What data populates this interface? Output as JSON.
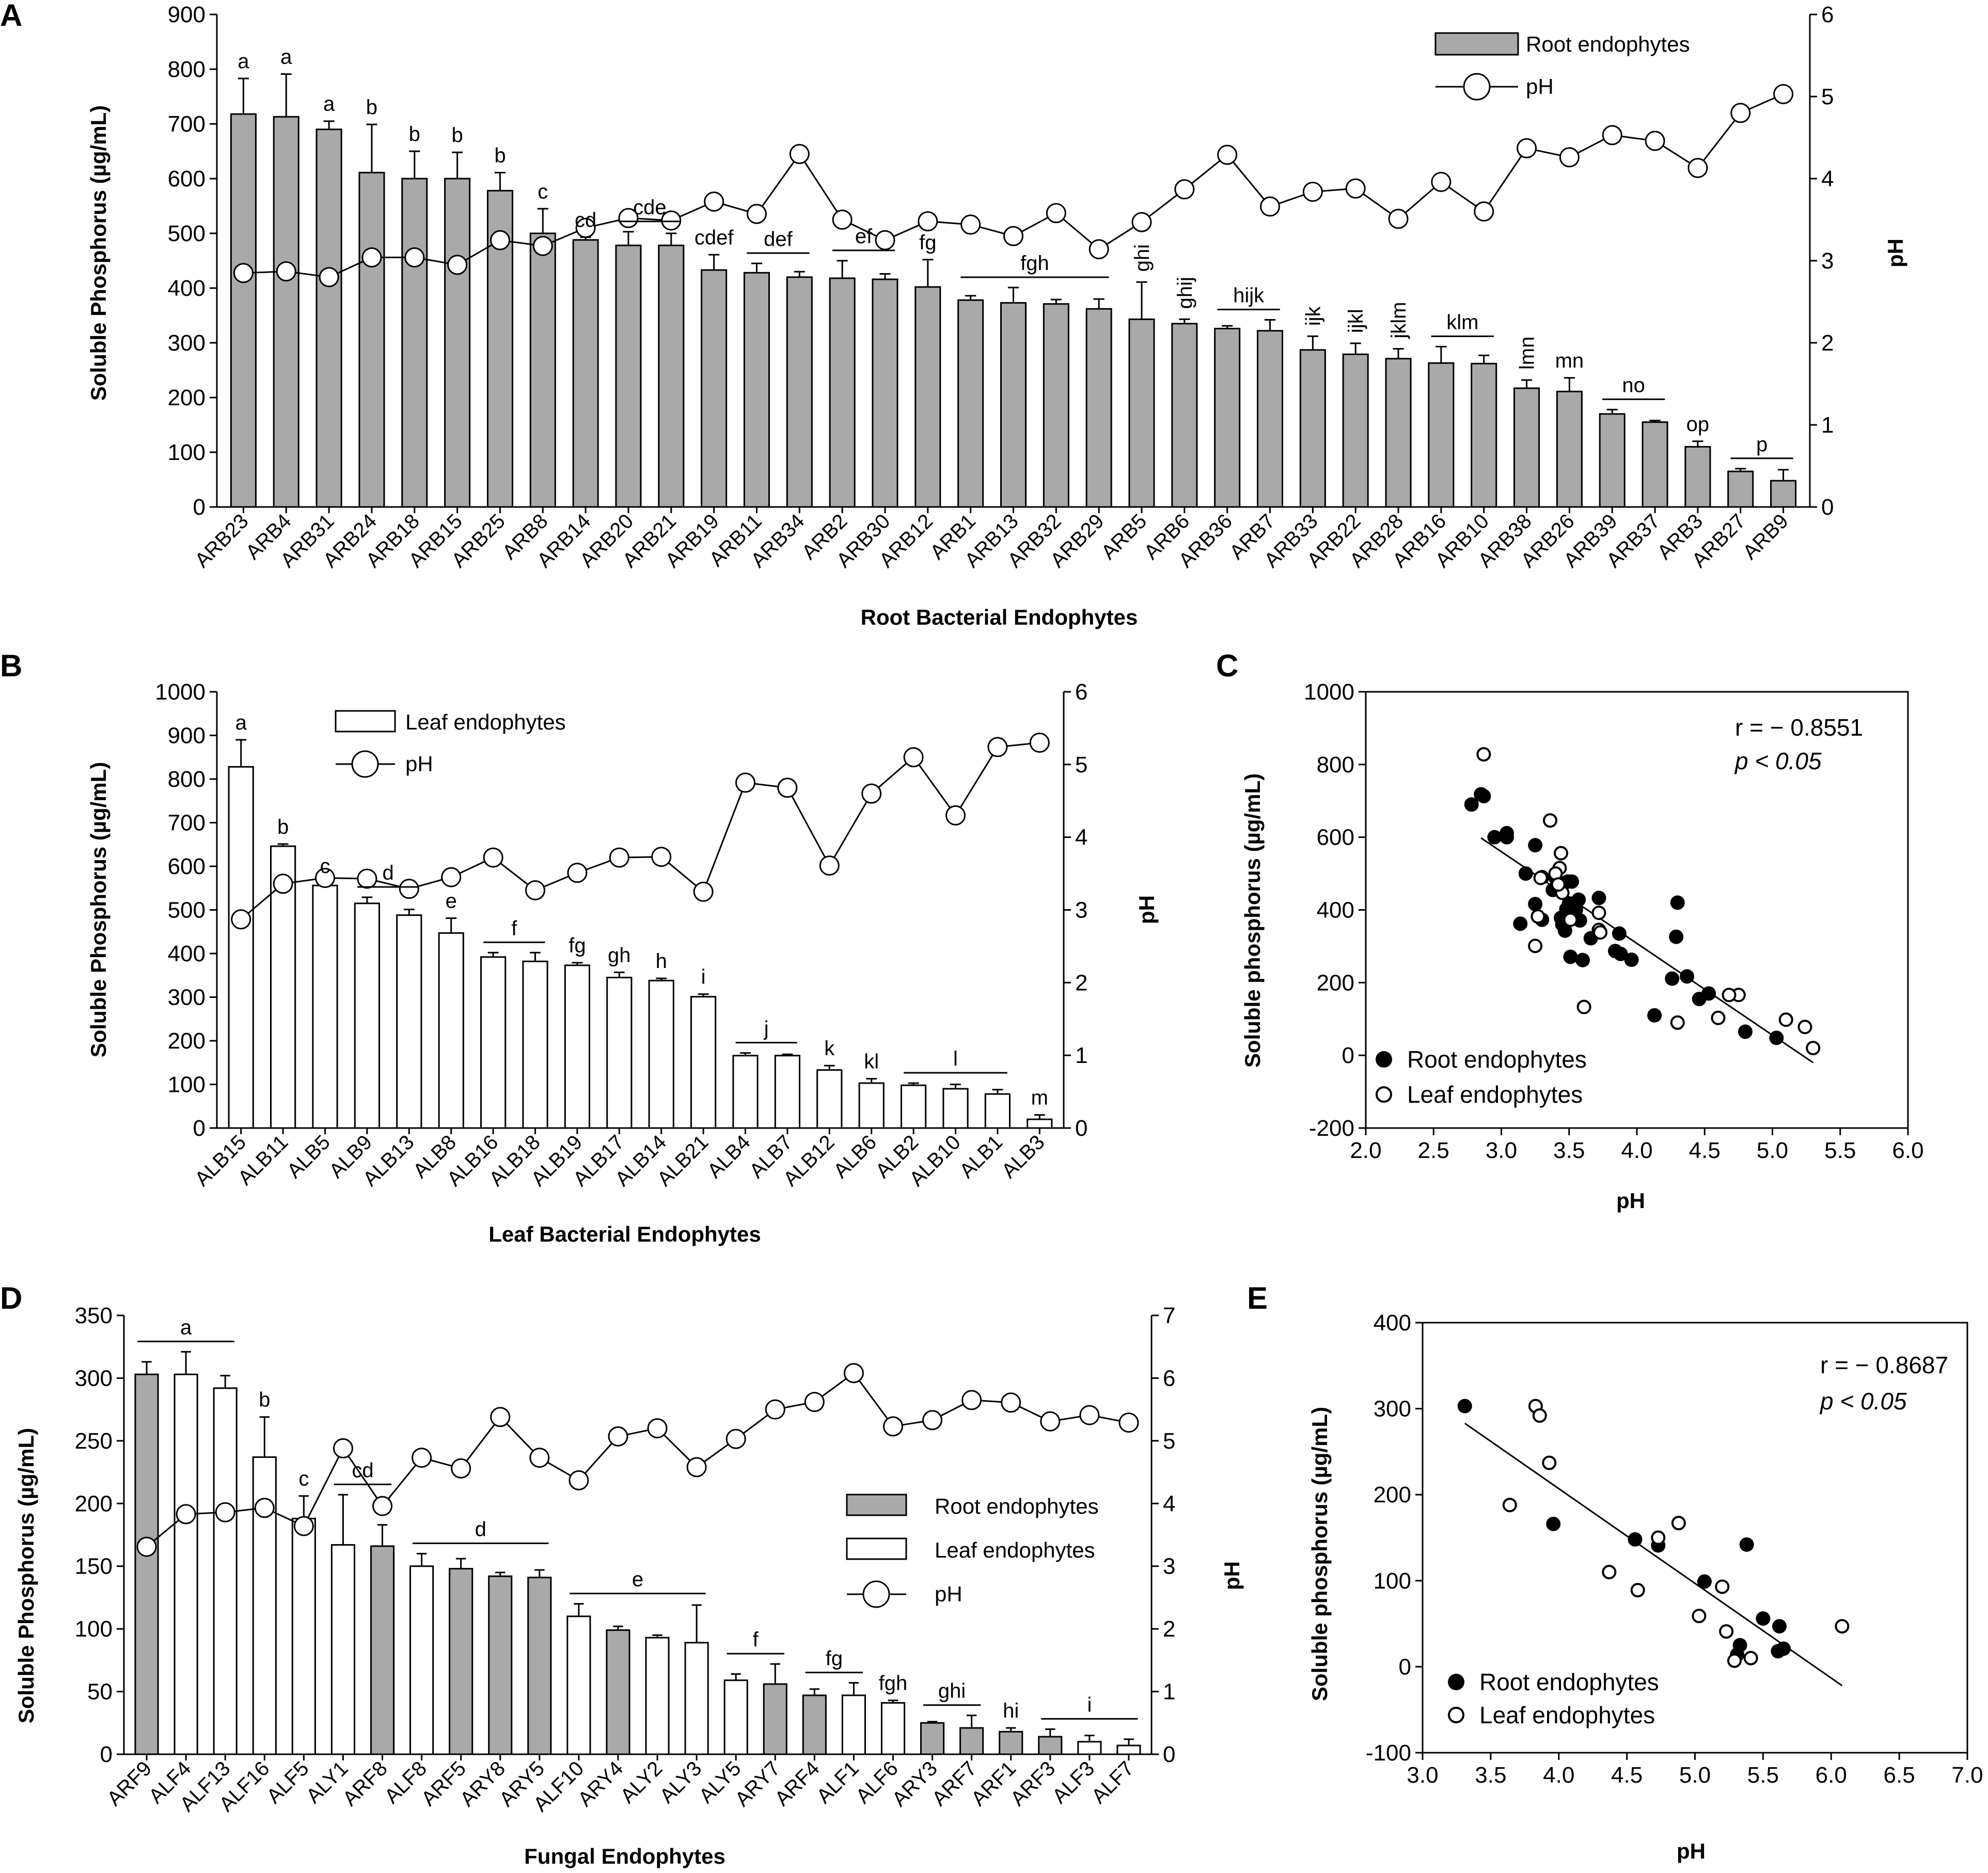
{
  "chart_data": [
    {
      "id": "A",
      "type": "bar",
      "panel_label": "A",
      "xlabel": "Root Bacterial Endophytes",
      "ylabel": "Soluble Phosphorus (µg/mL)",
      "y2label": "pH",
      "ylim": [
        0,
        900
      ],
      "yticks": [
        0,
        100,
        200,
        300,
        400,
        500,
        600,
        700,
        800,
        900
      ],
      "y2lim": [
        0,
        6
      ],
      "y2ticks": [
        0,
        1,
        2,
        3,
        4,
        5,
        6
      ],
      "legend": {
        "placement": "top-right",
        "bar_label": "Root endophytes",
        "line_label": "pH"
      },
      "bar_fill": "#a9a9a9",
      "categories": [
        "ARB23",
        "ARB4",
        "ARB31",
        "ARB24",
        "ARB18",
        "ARB15",
        "ARB25",
        "ARB8",
        "ARB14",
        "ARB20",
        "ARB21",
        "ARB19",
        "ARB11",
        "ARB34",
        "ARB2",
        "ARB30",
        "ARB12",
        "ARB1",
        "ARB13",
        "ARB32",
        "ARB29",
        "ARB5",
        "ARB6",
        "ARB36",
        "ARB7",
        "ARB33",
        "ARB22",
        "ARB28",
        "ARB16",
        "ARB10",
        "ARB38",
        "ARB26",
        "ARB39",
        "ARB37",
        "ARB3",
        "ARB27",
        "ARB9"
      ],
      "values": [
        718,
        713,
        690,
        611,
        600,
        600,
        578,
        500,
        488,
        478,
        478,
        433,
        428,
        420,
        418,
        416,
        402,
        378,
        373,
        371,
        362,
        343,
        335,
        326,
        322,
        287,
        279,
        271,
        263,
        262,
        217,
        211,
        170,
        155,
        110,
        65,
        48
      ],
      "errors": [
        65,
        78,
        15,
        88,
        50,
        48,
        33,
        45,
        5,
        25,
        22,
        28,
        17,
        10,
        32,
        10,
        50,
        8,
        28,
        8,
        18,
        68,
        8,
        5,
        20,
        25,
        20,
        18,
        30,
        15,
        15,
        25,
        8,
        3,
        10,
        5,
        20
      ],
      "ph": [
        2.85,
        2.87,
        2.8,
        3.04,
        3.04,
        2.95,
        3.25,
        3.18,
        3.4,
        3.52,
        3.49,
        3.72,
        3.57,
        4.3,
        3.5,
        3.25,
        3.48,
        3.44,
        3.3,
        3.58,
        3.14,
        3.47,
        3.87,
        4.29,
        3.66,
        3.84,
        3.88,
        3.51,
        3.96,
        3.6,
        4.37,
        4.26,
        4.53,
        4.46,
        4.13,
        4.8,
        5.03
      ],
      "sig_labels": [
        {
          "text": "a",
          "from": 0,
          "to": 0,
          "line": false
        },
        {
          "text": "a",
          "from": 1,
          "to": 1,
          "line": false
        },
        {
          "text": "a",
          "from": 2,
          "to": 2,
          "line": false
        },
        {
          "text": "b",
          "from": 3,
          "to": 3,
          "line": false
        },
        {
          "text": "b",
          "from": 4,
          "to": 4,
          "line": false
        },
        {
          "text": "b",
          "from": 5,
          "to": 5,
          "line": false
        },
        {
          "text": "b",
          "from": 6,
          "to": 6,
          "line": false
        },
        {
          "text": "c",
          "from": 7,
          "to": 7,
          "line": false
        },
        {
          "text": "cd",
          "from": 8,
          "to": 8,
          "line": false
        },
        {
          "text": "cde",
          "from": 9,
          "to": 10,
          "line": true
        },
        {
          "text": "cdef",
          "from": 11,
          "to": 11,
          "line": false
        },
        {
          "text": "def",
          "from": 12,
          "to": 13,
          "line": true
        },
        {
          "text": "ef",
          "from": 14,
          "to": 15,
          "line": true
        },
        {
          "text": "fg",
          "from": 16,
          "to": 16,
          "line": false
        },
        {
          "text": "fgh",
          "from": 17,
          "to": 20,
          "line": true
        },
        {
          "text": "ghi",
          "from": 21,
          "to": 21,
          "line": false,
          "rotate": true
        },
        {
          "text": "ghij",
          "from": 22,
          "to": 22,
          "line": false,
          "rotate": true
        },
        {
          "text": "hijk",
          "from": 23,
          "to": 24,
          "line": true
        },
        {
          "text": "ijk",
          "from": 25,
          "to": 25,
          "line": false,
          "rotate": true
        },
        {
          "text": "ijkl",
          "from": 26,
          "to": 26,
          "line": false,
          "rotate": true
        },
        {
          "text": "jklm",
          "from": 27,
          "to": 27,
          "line": false,
          "rotate": true
        },
        {
          "text": "klm",
          "from": 28,
          "to": 29,
          "line": true
        },
        {
          "text": "lmn",
          "from": 30,
          "to": 30,
          "line": false,
          "rotate": true
        },
        {
          "text": "mn",
          "from": 31,
          "to": 31,
          "line": false
        },
        {
          "text": "no",
          "from": 32,
          "to": 33,
          "line": true
        },
        {
          "text": "op",
          "from": 34,
          "to": 34,
          "line": false
        },
        {
          "text": "p",
          "from": 35,
          "to": 36,
          "line": true
        }
      ]
    },
    {
      "id": "B",
      "type": "bar",
      "panel_label": "B",
      "xlabel": "Leaf Bacterial Endophytes",
      "ylabel": "Soluble Phosphorus (µg/mL)",
      "y2label": "pH",
      "ylim": [
        0,
        1000
      ],
      "yticks": [
        0,
        100,
        200,
        300,
        400,
        500,
        600,
        700,
        800,
        900,
        1000
      ],
      "y2lim": [
        0,
        6
      ],
      "y2ticks": [
        0,
        1,
        2,
        3,
        4,
        5,
        6
      ],
      "legend": {
        "placement": "top-left",
        "bar_label": "Leaf endophytes",
        "line_label": "pH"
      },
      "bar_fill": "#ffffff",
      "categories": [
        "ALB15",
        "ALB11",
        "ALB5",
        "ALB9",
        "ALB13",
        "ALB8",
        "ALB16",
        "ALB18",
        "ALB19",
        "ALB17",
        "ALB14",
        "ALB21",
        "ALB4",
        "ALB7",
        "ALB12",
        "ALB6",
        "ALB2",
        "ALB10",
        "ALB1",
        "ALB3"
      ],
      "values": [
        828,
        646,
        556,
        515,
        488,
        447,
        392,
        382,
        373,
        345,
        338,
        301,
        166,
        166,
        133,
        103,
        98,
        90,
        78,
        20
      ],
      "errors": [
        62,
        5,
        5,
        14,
        13,
        34,
        10,
        20,
        6,
        12,
        5,
        6,
        6,
        3,
        10,
        10,
        5,
        10,
        10,
        10
      ],
      "ph": [
        2.87,
        3.36,
        3.44,
        3.43,
        3.29,
        3.45,
        3.72,
        3.27,
        3.51,
        3.72,
        3.73,
        3.25,
        4.75,
        4.68,
        3.61,
        4.6,
        5.1,
        4.3,
        5.24,
        5.3
      ],
      "sig_labels": [
        {
          "text": "a",
          "from": 0,
          "to": 0,
          "line": false
        },
        {
          "text": "b",
          "from": 1,
          "to": 1,
          "line": false
        },
        {
          "text": "c",
          "from": 2,
          "to": 2,
          "line": false
        },
        {
          "text": "d",
          "from": 3,
          "to": 4,
          "line": true
        },
        {
          "text": "e",
          "from": 5,
          "to": 5,
          "line": false
        },
        {
          "text": "f",
          "from": 6,
          "to": 7,
          "line": true
        },
        {
          "text": "fg",
          "from": 8,
          "to": 8,
          "line": false
        },
        {
          "text": "gh",
          "from": 9,
          "to": 9,
          "line": false
        },
        {
          "text": "h",
          "from": 10,
          "to": 10,
          "line": false
        },
        {
          "text": "i",
          "from": 11,
          "to": 11,
          "line": false
        },
        {
          "text": "j",
          "from": 12,
          "to": 13,
          "line": true
        },
        {
          "text": "k",
          "from": 14,
          "to": 14,
          "line": false
        },
        {
          "text": "kl",
          "from": 15,
          "to": 15,
          "line": false
        },
        {
          "text": "l",
          "from": 16,
          "to": 18,
          "line": true
        },
        {
          "text": "m",
          "from": 19,
          "to": 19,
          "line": false
        }
      ]
    },
    {
      "id": "C",
      "type": "scatter",
      "panel_label": "C",
      "xlabel": "pH",
      "ylabel": "Soluble phosphorus (µg/mL)",
      "xlim": [
        2.0,
        6.0
      ],
      "xticks": [
        "2.0",
        "2.5",
        "3.0",
        "3.5",
        "4.0",
        "4.5",
        "5.0",
        "5.5",
        "6.0"
      ],
      "ylim": [
        -200,
        1000
      ],
      "yticks": [
        -200,
        0,
        200,
        400,
        600,
        800,
        1000
      ],
      "stat_r": "r = − 0.8551",
      "stat_p": "p < 0.05",
      "fit_line": {
        "x": [
          2.85,
          5.3
        ],
        "y": [
          598,
          -20
        ]
      },
      "legend": {
        "placement": "bottom-left",
        "filled_label": "Root endophytes",
        "open_label": "Leaf endophytes"
      },
      "series": [
        {
          "name": "Root endophytes",
          "marker": "filled",
          "x": [
            2.78,
            2.85,
            2.87,
            2.95,
            3.04,
            3.04,
            3.18,
            3.25,
            3.4,
            3.52,
            3.49,
            3.72,
            3.57,
            4.3,
            3.5,
            3.25,
            3.48,
            3.44,
            3.3,
            3.58,
            3.14,
            3.47,
            3.87,
            4.29,
            3.66,
            3.84,
            3.88,
            3.51,
            3.96,
            3.6,
            4.37,
            4.26,
            4.53,
            4.46,
            4.13,
            4.8,
            5.03,
            3.3,
            3.45,
            3.38,
            3.55
          ],
          "y": [
            690,
            718,
            713,
            600,
            611,
            600,
            500,
            578,
            488,
            478,
            478,
            433,
            428,
            420,
            418,
            416,
            402,
            378,
            373,
            371,
            362,
            343,
            335,
            326,
            322,
            287,
            279,
            271,
            263,
            262,
            217,
            211,
            170,
            155,
            110,
            65,
            48,
            490,
            360,
            455,
            400
          ]
        },
        {
          "name": "Leaf endophytes",
          "marker": "open",
          "x": [
            2.87,
            3.36,
            3.44,
            3.43,
            3.29,
            3.45,
            3.72,
            3.27,
            3.51,
            3.72,
            3.73,
            3.25,
            4.75,
            4.68,
            3.61,
            4.6,
            5.1,
            4.3,
            5.24,
            5.3,
            3.4,
            3.42
          ],
          "y": [
            828,
            646,
            556,
            515,
            488,
            447,
            392,
            382,
            373,
            345,
            338,
            301,
            166,
            166,
            133,
            103,
            98,
            90,
            78,
            20,
            500,
            470
          ]
        }
      ]
    },
    {
      "id": "D",
      "type": "bar",
      "panel_label": "D",
      "xlabel": "Fungal Endophytes",
      "ylabel": "Soluble Phosphorus (µg/mL)",
      "y2label": "pH",
      "ylim": [
        0,
        350
      ],
      "yticks": [
        0,
        50,
        100,
        150,
        200,
        250,
        300,
        350
      ],
      "y2lim": [
        0,
        7
      ],
      "y2ticks": [
        0,
        1,
        2,
        3,
        4,
        5,
        6,
        7
      ],
      "legend": {
        "placement": "center-right",
        "root_label": "Root endophytes",
        "leaf_label": "Leaf endophytes",
        "line_label": "pH"
      },
      "root_fill": "#a9a9a9",
      "leaf_fill": "#ffffff",
      "categories": [
        "ARF9",
        "ALF4",
        "ALF13",
        "ALF16",
        "ALF5",
        "ALY1",
        "ARF8",
        "ALF8",
        "ARF5",
        "ARY8",
        "ARY5",
        "ALF10",
        "ARY4",
        "ALY2",
        "ALY3",
        "ALY5",
        "ARY7",
        "ARF4",
        "ALF1",
        "ALF6",
        "ARY3",
        "ARF7",
        "ARF1",
        "ARF3",
        "ALF3",
        "ALF7"
      ],
      "origin": [
        "root",
        "leaf",
        "leaf",
        "leaf",
        "leaf",
        "leaf",
        "root",
        "leaf",
        "root",
        "root",
        "root",
        "leaf",
        "root",
        "leaf",
        "leaf",
        "leaf",
        "root",
        "root",
        "leaf",
        "leaf",
        "root",
        "root",
        "root",
        "root",
        "leaf",
        "leaf"
      ],
      "values": [
        303,
        303,
        292,
        237,
        188,
        167,
        166,
        150,
        148,
        142,
        141,
        110,
        99,
        93,
        89,
        59,
        56,
        47,
        47,
        41,
        25,
        21,
        18,
        14,
        10,
        7
      ],
      "errors": [
        10,
        18,
        10,
        32,
        18,
        40,
        17,
        10,
        8,
        3,
        6,
        10,
        3,
        2,
        30,
        5,
        16,
        5,
        10,
        2,
        1,
        10,
        3,
        6,
        5,
        5
      ],
      "ph": [
        3.31,
        3.83,
        3.86,
        3.93,
        3.64,
        4.88,
        3.96,
        4.73,
        4.56,
        5.38,
        4.73,
        4.37,
        5.07,
        5.2,
        4.58,
        5.03,
        5.5,
        5.62,
        6.08,
        5.23,
        5.33,
        5.65,
        5.61,
        5.31,
        5.41,
        5.29
      ],
      "sig_labels": [
        {
          "text": "a",
          "from": 0,
          "to": 2,
          "line": true
        },
        {
          "text": "b",
          "from": 3,
          "to": 3,
          "line": false
        },
        {
          "text": "c",
          "from": 4,
          "to": 4,
          "line": false
        },
        {
          "text": "cd",
          "from": 5,
          "to": 6,
          "line": true
        },
        {
          "text": "d",
          "from": 7,
          "to": 10,
          "line": true
        },
        {
          "text": "e",
          "from": 11,
          "to": 14,
          "line": true
        },
        {
          "text": "f",
          "from": 15,
          "to": 16,
          "line": true
        },
        {
          "text": "fg",
          "from": 17,
          "to": 18,
          "line": true
        },
        {
          "text": "fgh",
          "from": 19,
          "to": 19,
          "line": false
        },
        {
          "text": "ghi",
          "from": 20,
          "to": 21,
          "line": true
        },
        {
          "text": "hi",
          "from": 22,
          "to": 22,
          "line": false
        },
        {
          "text": "i",
          "from": 23,
          "to": 25,
          "line": true
        }
      ]
    },
    {
      "id": "E",
      "type": "scatter",
      "panel_label": "E",
      "xlabel": "pH",
      "ylabel": "Soluble phosphorus (µg/mL)",
      "xlim": [
        3.0,
        7.0
      ],
      "xticks": [
        "3.0",
        "3.5",
        "4.0",
        "4.5",
        "5.0",
        "5.5",
        "6.0",
        "6.5",
        "7.0"
      ],
      "ylim": [
        -100,
        400
      ],
      "yticks": [
        -100,
        0,
        100,
        200,
        300,
        400
      ],
      "stat_r": "r = − 0.8687",
      "stat_p": "p < 0.05",
      "fit_line": {
        "x": [
          3.31,
          6.08
        ],
        "y": [
          283,
          -22
        ]
      },
      "legend": {
        "placement": "bottom-left",
        "filled_label": "Root endophytes",
        "open_label": "Leaf endophytes"
      },
      "series": [
        {
          "name": "Root endophytes",
          "marker": "filled",
          "x": [
            3.31,
            3.96,
            4.56,
            5.38,
            5.07,
            4.73,
            5.5,
            5.62,
            5.33,
            5.65,
            5.61,
            5.31
          ],
          "y": [
            303,
            166,
            148,
            142,
            99,
            141,
            56,
            47,
            25,
            21,
            18,
            14
          ]
        },
        {
          "name": "Leaf endophytes",
          "marker": "open",
          "x": [
            3.83,
            3.86,
            3.93,
            3.64,
            4.88,
            4.73,
            4.37,
            5.2,
            4.58,
            5.03,
            5.23,
            6.08,
            5.41,
            5.29
          ],
          "y": [
            303,
            292,
            237,
            188,
            167,
            150,
            110,
            93,
            89,
            59,
            41,
            47,
            10,
            7
          ]
        }
      ]
    }
  ]
}
